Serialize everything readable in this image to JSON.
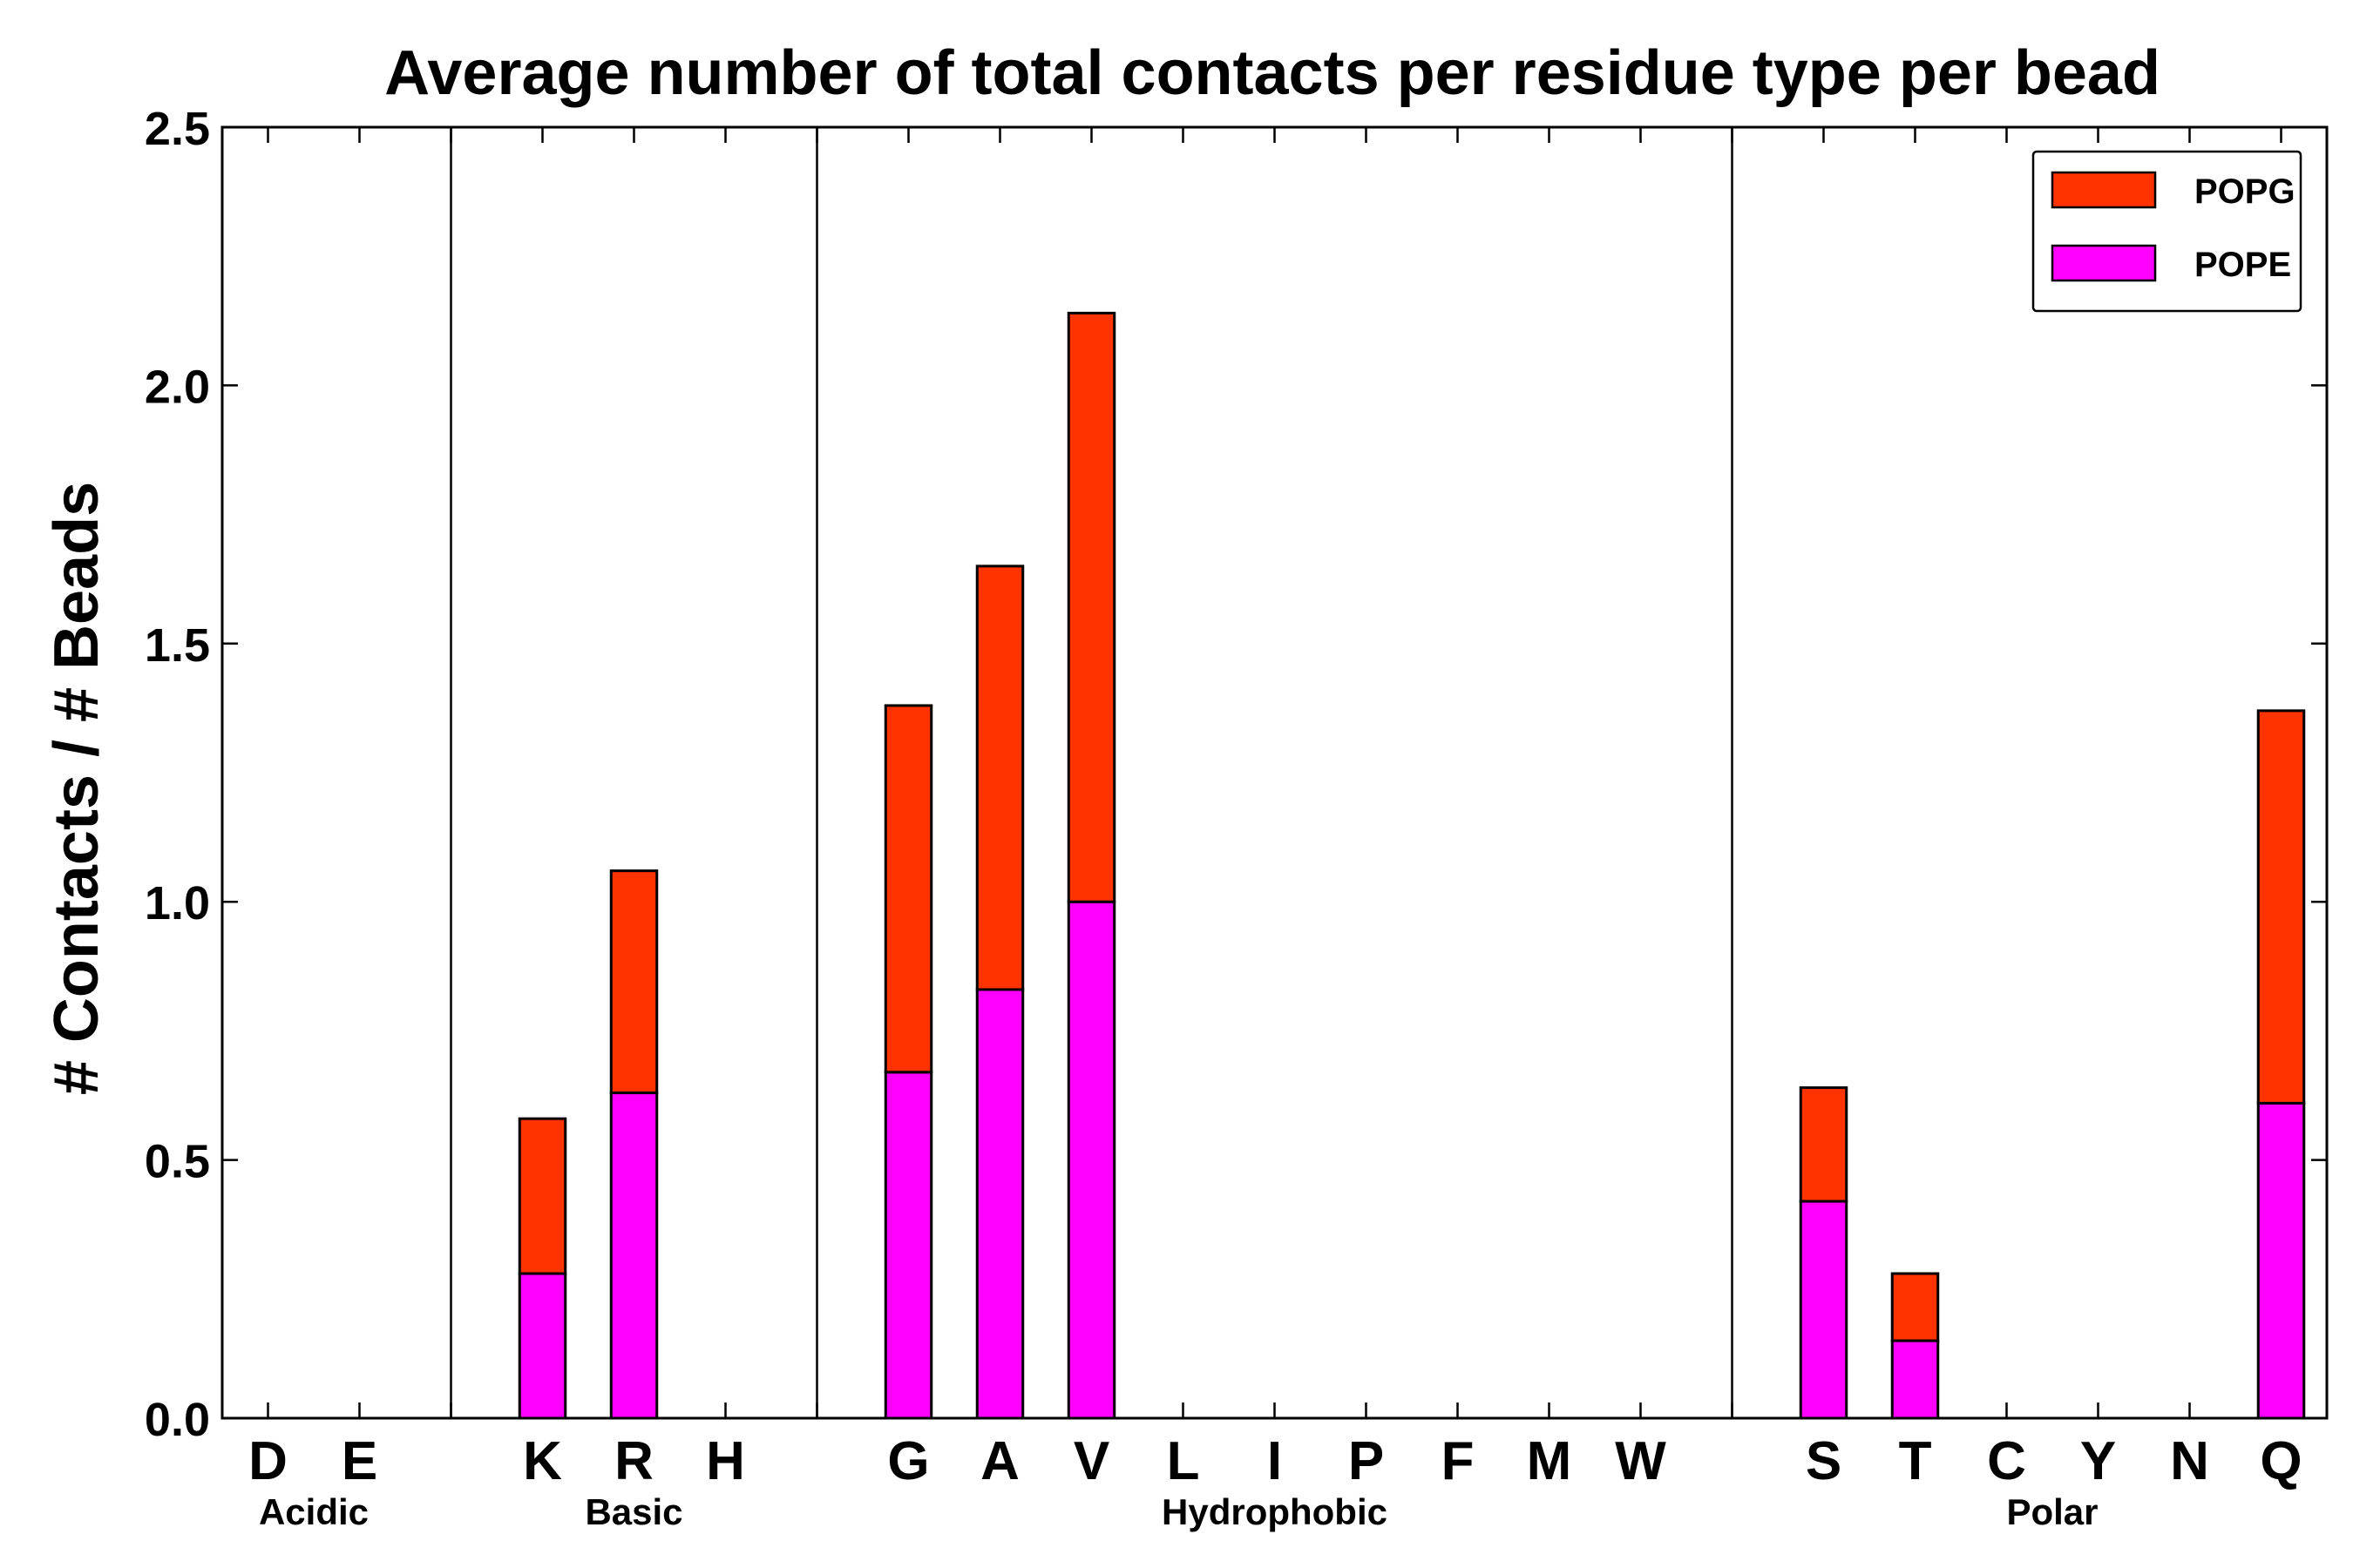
{
  "chart_data": {
    "type": "bar",
    "stacked": true,
    "title": "Average number of total contacts per residue type per bead",
    "xlabel": "",
    "ylabel": "# Contacts / # Beads",
    "ylim": [
      0,
      2.5
    ],
    "yticks": [
      "0.0",
      "0.5",
      "1.0",
      "1.5",
      "2.0",
      "2.5"
    ],
    "categories": [
      "D",
      "E",
      "",
      "K",
      "R",
      "H",
      "",
      "G",
      "A",
      "V",
      "L",
      "I",
      "P",
      "F",
      "M",
      "W",
      "",
      "S",
      "T",
      "C",
      "Y",
      "N",
      "Q"
    ],
    "series": [
      {
        "name": "POPE",
        "color": "#ff00ff",
        "values": [
          0,
          0,
          0,
          0.28,
          0.63,
          0,
          0,
          0.67,
          0.83,
          1.0,
          0,
          0,
          0,
          0,
          0,
          0,
          0,
          0.42,
          0.15,
          0,
          0,
          0,
          0.61
        ]
      },
      {
        "name": "POPG",
        "color": "#ff3300",
        "values": [
          0,
          0,
          0,
          0.3,
          0.43,
          0,
          0,
          0.71,
          0.82,
          1.14,
          0,
          0,
          0,
          0,
          0,
          0,
          0,
          0.22,
          0.13,
          0,
          0,
          0,
          0.76
        ]
      }
    ],
    "groups": [
      {
        "label": "Acidic",
        "start": 0,
        "end": 1
      },
      {
        "label": "Basic",
        "start": 3,
        "end": 5
      },
      {
        "label": "Hydrophobic",
        "start": 7,
        "end": 15
      },
      {
        "label": "Polar",
        "start": 17,
        "end": 22
      }
    ],
    "group_separators_after": [
      2,
      6,
      16
    ],
    "legend": {
      "placement": "top-right",
      "order": [
        "POPG",
        "POPE"
      ]
    },
    "grid": false
  }
}
